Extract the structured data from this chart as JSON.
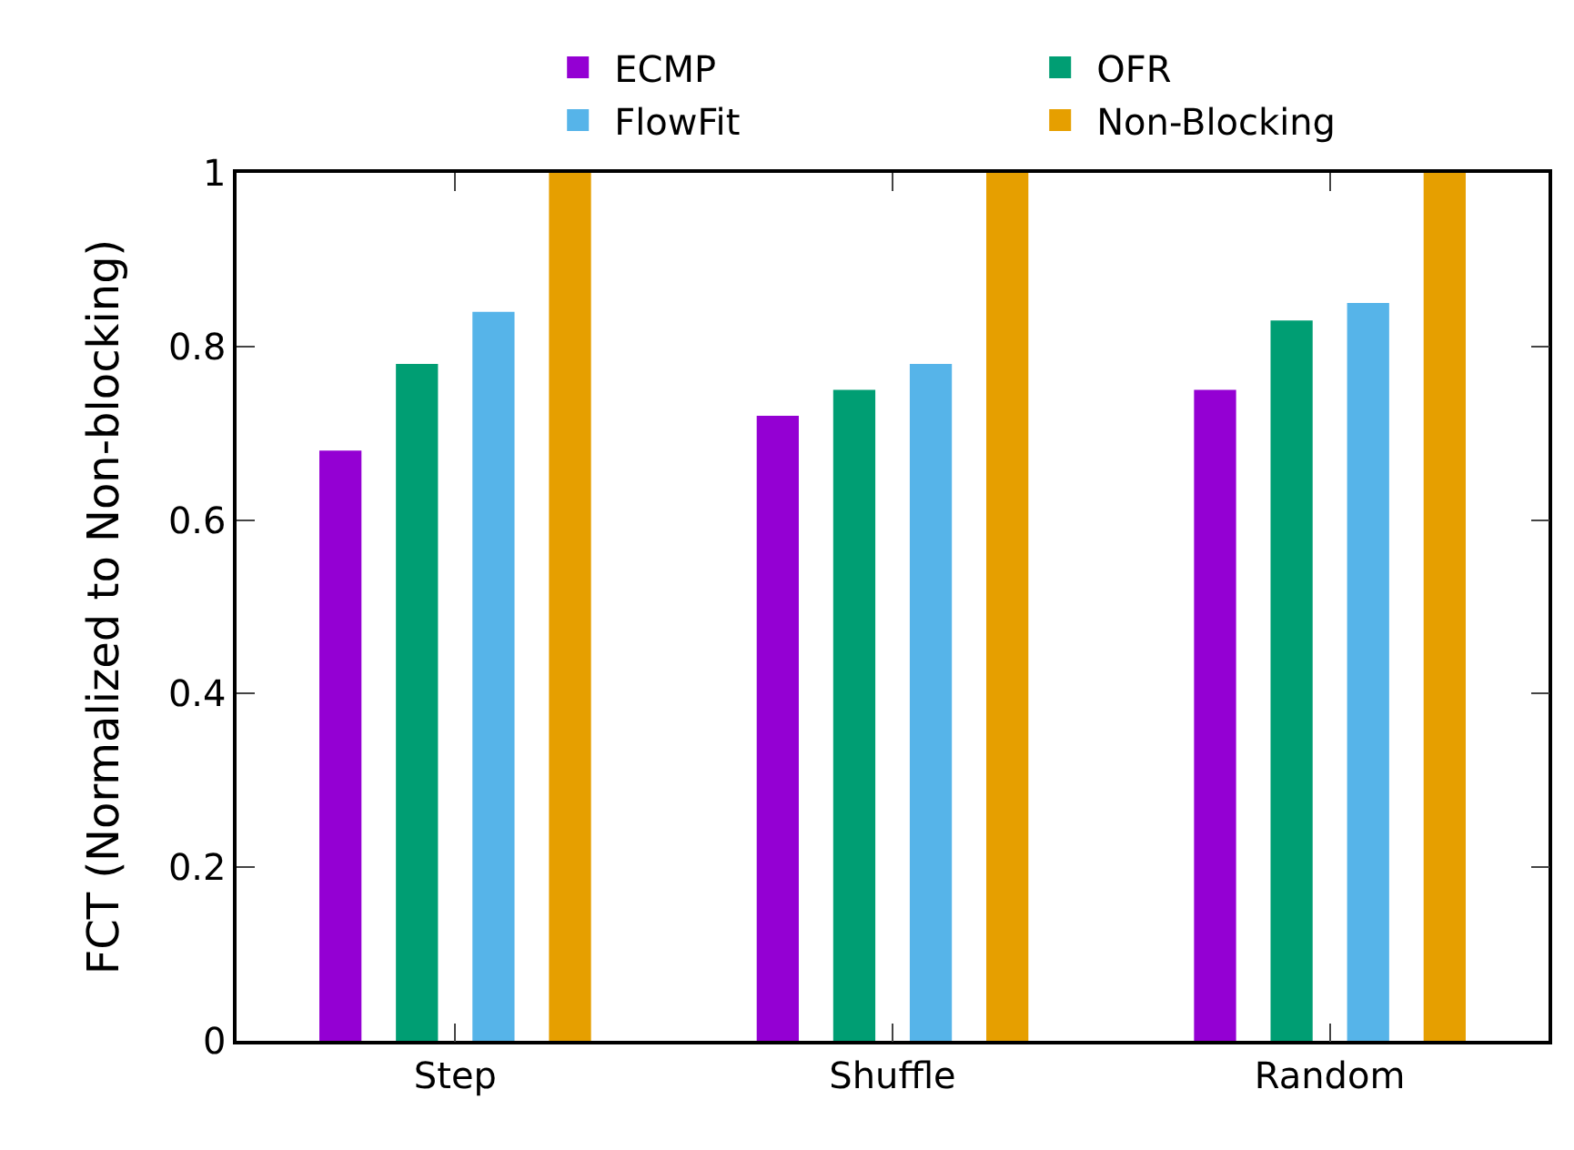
{
  "chart_data": {
    "type": "bar",
    "ylabel": "FCT (Normalized to Non-blocking)",
    "categories": [
      "Step",
      "Shuffle",
      "Random"
    ],
    "series": [
      {
        "name": "ECMP",
        "color": "#9400d3",
        "values": [
          0.68,
          0.72,
          0.75
        ]
      },
      {
        "name": "OFR",
        "color": "#009e73",
        "values": [
          0.78,
          0.75,
          0.83
        ]
      },
      {
        "name": "FlowFit",
        "color": "#56b4e9",
        "values": [
          0.84,
          0.78,
          0.85
        ]
      },
      {
        "name": "Non-Blocking",
        "color": "#e69f00",
        "values": [
          1,
          1,
          1
        ]
      }
    ],
    "ylim": [
      0,
      1
    ],
    "yticks": [
      0,
      0.2,
      0.4,
      0.6,
      0.8,
      1
    ],
    "legend": "top"
  }
}
